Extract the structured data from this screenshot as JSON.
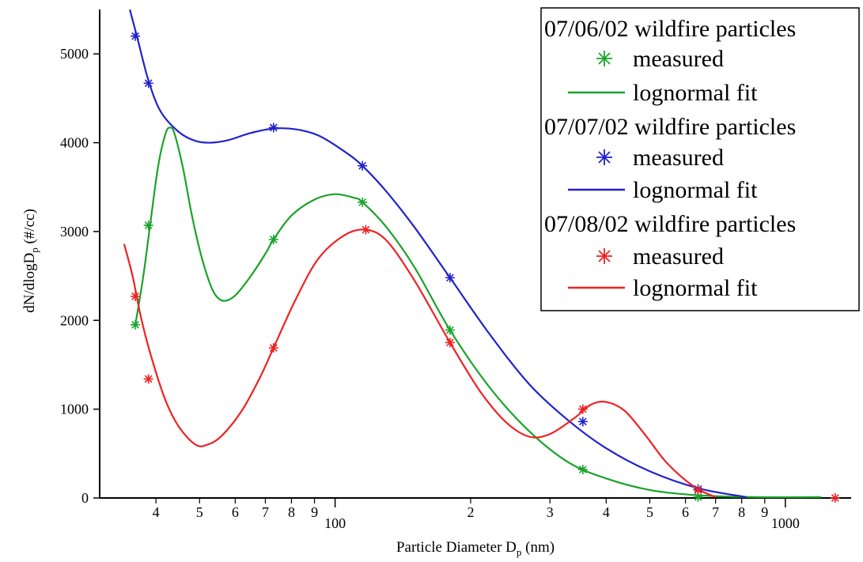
{
  "chart_data": {
    "type": "line",
    "x_scale": "log",
    "xlabel": "Particle Diameter D",
    "xlabel_sub": "p",
    "xlabel_unit": " (nm)",
    "ylabel": "dN/dlogD",
    "ylabel_sub": "p",
    "ylabel_unit": "  (#/cc)",
    "xlim": [
      30,
      1400
    ],
    "ylim": [
      0,
      5500
    ],
    "y_ticks": [
      0,
      1000,
      2000,
      3000,
      4000,
      5000
    ],
    "x_major_ticks": [
      100,
      1000
    ],
    "x_major_labels": [
      "100",
      "1000"
    ],
    "x_minor_ticks": [
      40,
      50,
      60,
      70,
      80,
      90,
      200,
      300,
      400,
      500,
      600,
      700,
      800,
      900
    ],
    "x_minor_labels": [
      "4",
      "5",
      "6",
      "7",
      "8",
      "9",
      "2",
      "3",
      "4",
      "5",
      "6",
      "7",
      "8",
      "9"
    ],
    "grid": false,
    "legend_position": "top-right",
    "series": [
      {
        "name": "07/06/02 wildfire particles",
        "color": "#1aa32a",
        "measured_label": "measured",
        "fit_label": "lognormal fit",
        "measured": [
          [
            36,
            1950
          ],
          [
            38.5,
            3070
          ],
          [
            73,
            2910
          ],
          [
            115,
            3330
          ],
          [
            180,
            1890
          ],
          [
            355,
            320
          ],
          [
            640,
            10
          ]
        ],
        "fit": [
          [
            36,
            1950
          ],
          [
            37.5,
            2500
          ],
          [
            39,
            3150
          ],
          [
            40.5,
            3750
          ],
          [
            42,
            4100
          ],
          [
            43,
            4170
          ],
          [
            44,
            4100
          ],
          [
            46,
            3700
          ],
          [
            48,
            3200
          ],
          [
            50,
            2800
          ],
          [
            52,
            2500
          ],
          [
            54,
            2300
          ],
          [
            56.5,
            2220
          ],
          [
            60,
            2280
          ],
          [
            65,
            2500
          ],
          [
            70,
            2750
          ],
          [
            73,
            2910
          ],
          [
            80,
            3180
          ],
          [
            90,
            3360
          ],
          [
            100,
            3420
          ],
          [
            110,
            3380
          ],
          [
            115,
            3330
          ],
          [
            130,
            3050
          ],
          [
            150,
            2600
          ],
          [
            180,
            1890
          ],
          [
            220,
            1250
          ],
          [
            270,
            750
          ],
          [
            330,
            400
          ],
          [
            400,
            220
          ],
          [
            500,
            90
          ],
          [
            640,
            30
          ],
          [
            850,
            10
          ],
          [
            1200,
            10
          ]
        ]
      },
      {
        "name": "07/07/02 wildfire particles",
        "color": "#2222cc",
        "measured_label": "measured",
        "fit_label": "lognormal fit",
        "measured": [
          [
            36,
            5200
          ],
          [
            38.5,
            4670
          ],
          [
            73,
            4170
          ],
          [
            115,
            3740
          ],
          [
            180,
            2480
          ],
          [
            355,
            860
          ],
          [
            640,
            100
          ]
        ],
        "fit": [
          [
            35,
            5500
          ],
          [
            36.5,
            5150
          ],
          [
            38.5,
            4700
          ],
          [
            41,
            4350
          ],
          [
            45,
            4120
          ],
          [
            49,
            4020
          ],
          [
            53,
            4000
          ],
          [
            58,
            4030
          ],
          [
            65,
            4110
          ],
          [
            73,
            4160
          ],
          [
            82,
            4150
          ],
          [
            92,
            4080
          ],
          [
            105,
            3900
          ],
          [
            115,
            3740
          ],
          [
            130,
            3450
          ],
          [
            150,
            3050
          ],
          [
            180,
            2480
          ],
          [
            220,
            1850
          ],
          [
            270,
            1280
          ],
          [
            330,
            870
          ],
          [
            400,
            560
          ],
          [
            500,
            300
          ],
          [
            640,
            110
          ],
          [
            820,
            10
          ]
        ]
      },
      {
        "name": "07/08/02 wildfire particles",
        "color": "#ee2222",
        "measured_label": "measured",
        "fit_label": "lognormal fit",
        "measured": [
          [
            36,
            2270
          ],
          [
            38.5,
            1340
          ],
          [
            73,
            1690
          ],
          [
            117,
            3020
          ],
          [
            180,
            1750
          ],
          [
            355,
            1000
          ],
          [
            640,
            90
          ],
          [
            1290,
            0
          ]
        ],
        "fit": [
          [
            34,
            2860
          ],
          [
            35.5,
            2500
          ],
          [
            37,
            2050
          ],
          [
            39,
            1600
          ],
          [
            42,
            1100
          ],
          [
            45,
            800
          ],
          [
            49,
            600
          ],
          [
            52,
            600
          ],
          [
            56,
            700
          ],
          [
            62,
            980
          ],
          [
            68,
            1350
          ],
          [
            73,
            1690
          ],
          [
            82,
            2250
          ],
          [
            92,
            2700
          ],
          [
            105,
            2960
          ],
          [
            117,
            3020
          ],
          [
            130,
            2900
          ],
          [
            150,
            2450
          ],
          [
            180,
            1750
          ],
          [
            210,
            1200
          ],
          [
            240,
            850
          ],
          [
            270,
            690
          ],
          [
            300,
            720
          ],
          [
            340,
            900
          ],
          [
            370,
            1050
          ],
          [
            400,
            1080
          ],
          [
            440,
            980
          ],
          [
            490,
            700
          ],
          [
            540,
            420
          ],
          [
            600,
            200
          ],
          [
            650,
            80
          ],
          [
            700,
            10
          ]
        ]
      }
    ]
  }
}
